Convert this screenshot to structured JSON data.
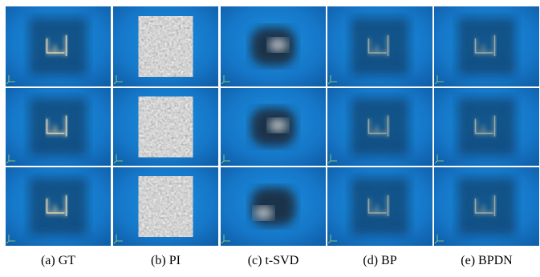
{
  "figure": {
    "captions": [
      "(a) GT",
      "(b) PI",
      "(c) t-SVD",
      "(d) BP",
      "(e) BPDN"
    ]
  }
}
